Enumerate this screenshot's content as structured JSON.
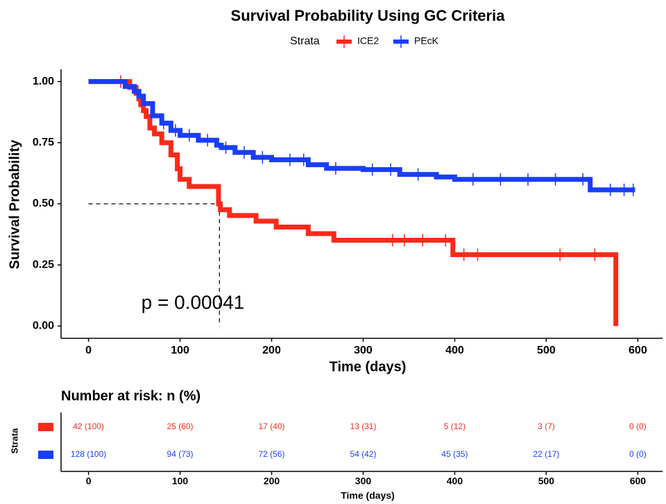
{
  "chart_data": [
    {
      "type": "step",
      "title": "Survival Probability Using GC Criteria",
      "legend_title": "Strata",
      "x_label": "Time (days)",
      "y_label": "Survival Probability",
      "annotation": "p = 0.00041",
      "xlim": [
        -30,
        627
      ],
      "ylim": [
        -0.05,
        1.05
      ],
      "xticks": [
        0,
        100,
        200,
        300,
        400,
        500,
        600
      ],
      "yticks": [
        {
          "value": 0,
          "label": "0.00"
        },
        {
          "value": 0.25,
          "label": "0.25"
        },
        {
          "value": 0.5,
          "label": "0.50"
        },
        {
          "value": 0.75,
          "label": "0.75"
        },
        {
          "value": 1,
          "label": "1.00"
        }
      ],
      "median": {
        "x": 143,
        "y": 0.5
      },
      "series": [
        {
          "name": "ICE2",
          "color": "#fa2a1a",
          "x": [
            0,
            33,
            45,
            52,
            55,
            57,
            60,
            63,
            67,
            72,
            80,
            90,
            97,
            100,
            110,
            142,
            144,
            154,
            183,
            205,
            240,
            268,
            398,
            576,
            576
          ],
          "values": [
            1,
            1,
            0.976,
            0.952,
            0.929,
            0.905,
            0.881,
            0.857,
            0.81,
            0.786,
            0.75,
            0.7,
            0.643,
            0.6,
            0.571,
            0.5,
            0.476,
            0.452,
            0.429,
            0.405,
            0.378,
            0.351,
            0.292,
            0.292,
            0
          ],
          "censor_x": [
            35,
            332,
            345,
            365,
            390,
            410,
            425,
            515,
            553
          ],
          "censor_y": [
            1,
            0.351,
            0.351,
            0.351,
            0.351,
            0.292,
            0.292,
            0.292,
            0.292
          ]
        },
        {
          "name": "PEcK",
          "color": "#1a3dfa",
          "x": [
            0,
            35,
            40,
            50,
            55,
            60,
            70,
            80,
            90,
            100,
            120,
            140,
            145,
            160,
            180,
            200,
            240,
            260,
            300,
            340,
            380,
            400,
            548,
            597
          ],
          "values": [
            1,
            1,
            0.98,
            0.96,
            0.94,
            0.91,
            0.86,
            0.83,
            0.8,
            0.78,
            0.76,
            0.74,
            0.73,
            0.71,
            0.69,
            0.68,
            0.66,
            0.645,
            0.64,
            0.62,
            0.61,
            0.6,
            0.557,
            0.557
          ],
          "censor_x": [
            82,
            95,
            110,
            130,
            150,
            170,
            190,
            220,
            235,
            270,
            310,
            330,
            360,
            420,
            450,
            480,
            510,
            540,
            570,
            585,
            595
          ],
          "censor_y": [
            0.83,
            0.8,
            0.78,
            0.76,
            0.73,
            0.71,
            0.69,
            0.68,
            0.68,
            0.645,
            0.64,
            0.64,
            0.62,
            0.6,
            0.6,
            0.6,
            0.6,
            0.6,
            0.557,
            0.557,
            0.557
          ]
        }
      ]
    },
    {
      "type": "risk_table",
      "title": "Number at risk: n (%)",
      "y_label": "Strata",
      "x_label": "Time (days)",
      "xlim": [
        -30,
        627
      ],
      "xticks": [
        0,
        100,
        200,
        300,
        400,
        500,
        600
      ],
      "rows": [
        {
          "color": "#fa2a1a",
          "cells": [
            "42 (100)",
            "25 (60)",
            "17 (40)",
            "13 (31)",
            "5 (12)",
            "3 (7)",
            "0 (0)"
          ]
        },
        {
          "color": "#1a3dfa",
          "cells": [
            "128 (100)",
            "94 (73)",
            "72 (56)",
            "54 (42)",
            "45 (35)",
            "22 (17)",
            "0 (0)"
          ]
        }
      ]
    }
  ]
}
